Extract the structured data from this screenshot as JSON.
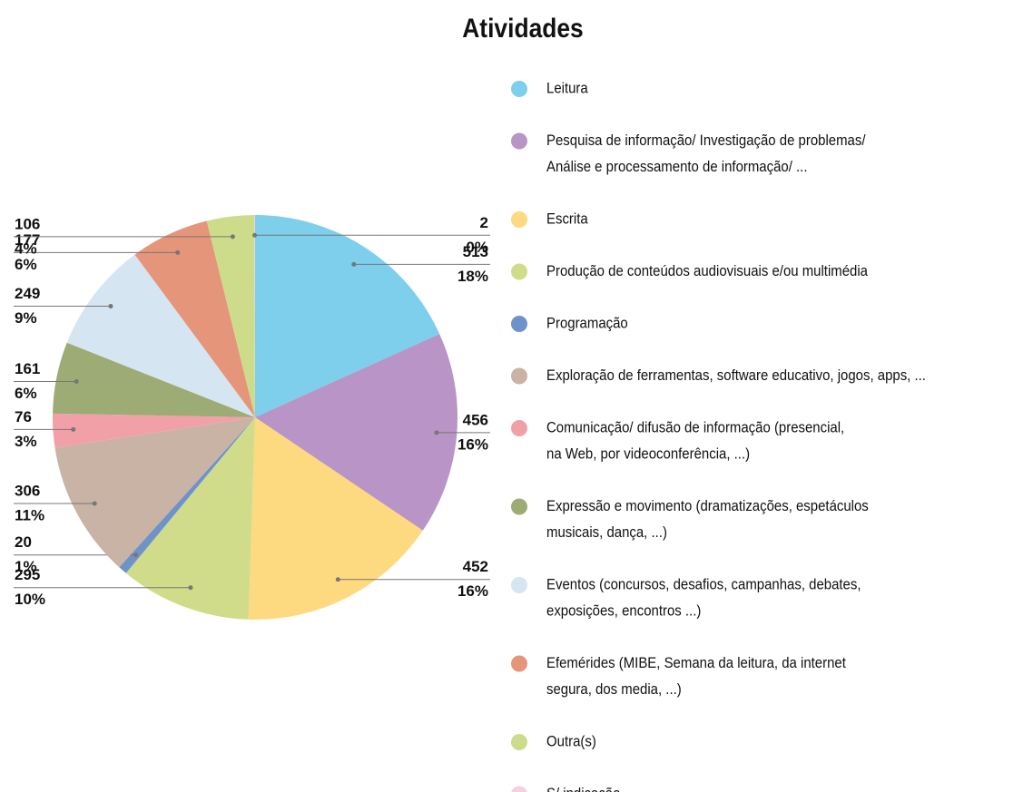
{
  "chart_data": {
    "type": "pie",
    "title": "Atividades",
    "categories": [
      [
        "Leitura"
      ],
      [
        "Pesquisa de informação/ Investigação de problemas/",
        "Análise e processamento de informação/ ..."
      ],
      [
        "Escrita"
      ],
      [
        "Produção de conteúdos audiovisuais e/ou multimédia"
      ],
      [
        "Programação"
      ],
      [
        "Exploração de ferramentas, software educativo, jogos, apps, ..."
      ],
      [
        "Comunicação/ difusão de informação (presencial,",
        "na Web, por videoconferência, ...)"
      ],
      [
        "Expressão e movimento (dramatizações, espetáculos",
        "musicais, dança, ...)"
      ],
      [
        "Eventos (concursos, desafios, campanhas, debates,",
        "exposições, encontros ...)"
      ],
      [
        "Efemérides (MIBE, Semana da leitura, da internet",
        "segura, dos media, ...)"
      ],
      [
        "Outra(s)"
      ],
      [
        "S/ indicação"
      ]
    ],
    "values": [
      513,
      456,
      452,
      295,
      20,
      306,
      76,
      161,
      249,
      177,
      106,
      2
    ],
    "percent_labels": [
      "18%",
      "16%",
      "16%",
      "10%",
      "1%",
      "11%",
      "3%",
      "6%",
      "9%",
      "6%",
      "4%",
      "0%"
    ],
    "colors": [
      "#7dcfec",
      "#b994c6",
      "#fdd980",
      "#d1dc8a",
      "#6f92c9",
      "#c8b3a5",
      "#f2a0a8",
      "#9dab74",
      "#d5e6f2",
      "#e5957a",
      "#cddc8b",
      "#f6cfe0"
    ],
    "legend": "right"
  }
}
